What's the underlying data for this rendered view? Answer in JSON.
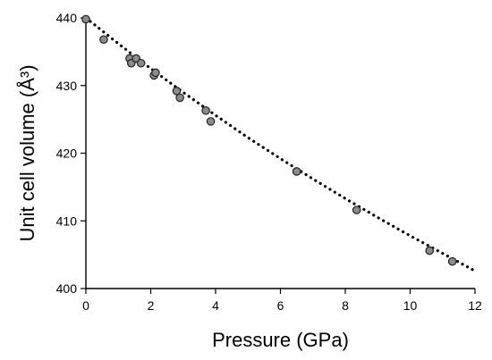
{
  "chart_data": {
    "type": "scatter",
    "title": "",
    "xlabel": "Pressure (GPa)",
    "ylabel": "Unit cell volume (Å³)",
    "xlim": [
      0,
      12
    ],
    "ylim": [
      400,
      440
    ],
    "x_ticks": [
      "0",
      "2",
      "4",
      "6",
      "8",
      "10",
      "12"
    ],
    "y_ticks": [
      "400",
      "410",
      "420",
      "430",
      "440"
    ],
    "grid": false,
    "legend": "none",
    "marker_color": "#8b8b8b",
    "series": [
      {
        "x": [
          0.0,
          0.55,
          1.35,
          1.4,
          1.55,
          1.7,
          2.1,
          2.15,
          2.8,
          2.9,
          3.7,
          3.85,
          6.5,
          8.35,
          10.6,
          11.3
        ],
        "y": [
          439.8,
          436.8,
          434.0,
          433.3,
          434.0,
          433.3,
          431.5,
          431.9,
          429.2,
          428.2,
          426.3,
          424.7,
          417.3,
          411.6,
          405.6,
          404.0
        ]
      }
    ],
    "fit_curve": {
      "style": "dotted",
      "x": [
        0,
        1,
        2,
        3,
        4,
        5,
        6,
        7,
        8,
        9,
        10,
        11,
        12
      ],
      "y": [
        440.0,
        436.2,
        432.5,
        429.0,
        425.6,
        422.3,
        419.2,
        416.2,
        413.3,
        410.5,
        407.8,
        405.2,
        402.6
      ]
    }
  }
}
